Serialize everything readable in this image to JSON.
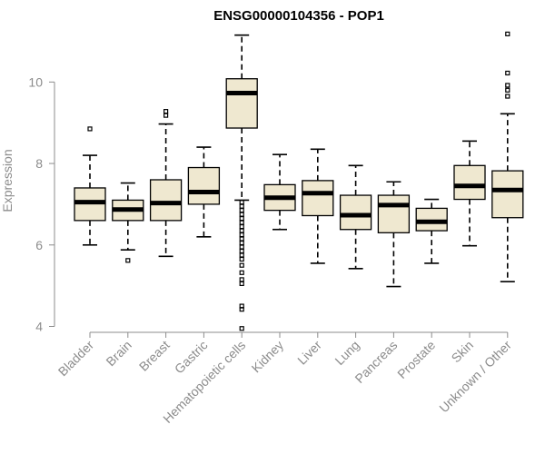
{
  "chart_data": {
    "type": "boxplot",
    "title": "ENSG00000104356 - POP1",
    "ylabel": "Expression",
    "xlabel": "",
    "ylim": [
      3.9,
      11.3
    ],
    "yticks": [
      4,
      6,
      8,
      10
    ],
    "colors": {
      "box_fill": "#efe8d0",
      "stroke": "#000000",
      "axis_text": "#8c8c8c"
    },
    "categories": [
      "Bladder",
      "Brain",
      "Breast",
      "Gastric",
      "Hematopoietic cells",
      "Kidney",
      "Liver",
      "Lung",
      "Pancreas",
      "Prostate",
      "Skin",
      "Unknown / Other"
    ],
    "boxes": [
      {
        "min": 6.0,
        "q1": 6.6,
        "median": 7.05,
        "q3": 7.4,
        "max": 8.2,
        "outliers": [
          8.85
        ]
      },
      {
        "min": 5.88,
        "q1": 6.6,
        "median": 6.87,
        "q3": 7.1,
        "max": 7.52,
        "outliers": [
          5.62
        ]
      },
      {
        "min": 5.72,
        "q1": 6.6,
        "median": 7.03,
        "q3": 7.6,
        "max": 8.97,
        "outliers": [
          9.18,
          9.28
        ]
      },
      {
        "min": 6.2,
        "q1": 7.0,
        "median": 7.3,
        "q3": 7.9,
        "max": 8.4,
        "outliers": []
      },
      {
        "min": 7.1,
        "q1": 8.87,
        "median": 9.73,
        "q3": 10.08,
        "max": 11.15,
        "outliers": [
          7.05,
          6.95,
          6.85,
          6.75,
          6.65,
          6.55,
          6.45,
          6.35,
          6.25,
          6.15,
          6.05,
          5.95,
          5.85,
          5.75,
          5.65,
          5.5,
          5.32,
          5.15,
          5.05,
          4.5,
          4.42,
          3.95
        ]
      },
      {
        "min": 6.38,
        "q1": 6.85,
        "median": 7.16,
        "q3": 7.48,
        "max": 8.22,
        "outliers": []
      },
      {
        "min": 5.55,
        "q1": 6.72,
        "median": 7.27,
        "q3": 7.58,
        "max": 8.35,
        "outliers": []
      },
      {
        "min": 5.42,
        "q1": 6.38,
        "median": 6.73,
        "q3": 7.22,
        "max": 7.95,
        "outliers": []
      },
      {
        "min": 4.98,
        "q1": 6.3,
        "median": 6.98,
        "q3": 7.22,
        "max": 7.55,
        "outliers": []
      },
      {
        "min": 5.55,
        "q1": 6.35,
        "median": 6.57,
        "q3": 6.9,
        "max": 7.12,
        "outliers": []
      },
      {
        "min": 5.98,
        "q1": 7.12,
        "median": 7.45,
        "q3": 7.95,
        "max": 8.55,
        "outliers": []
      },
      {
        "min": 5.1,
        "q1": 6.67,
        "median": 7.35,
        "q3": 7.82,
        "max": 9.22,
        "outliers": [
          9.65,
          9.8,
          9.92,
          10.22,
          11.18
        ]
      }
    ]
  }
}
